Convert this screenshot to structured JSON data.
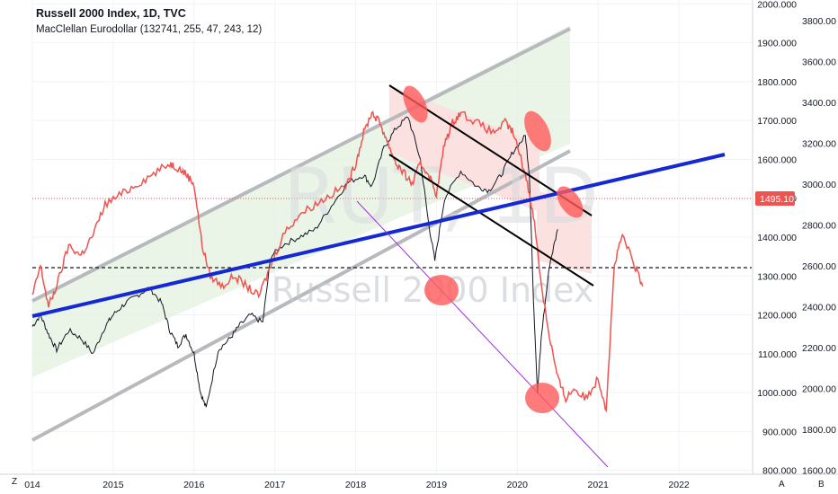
{
  "legend": {
    "title": "Russell 2000 Index, 1D, TVC",
    "indicator": "MacClellan Eurodollar (132741, 255, 47, 243, 12)"
  },
  "watermark": {
    "symbol": "RUT, 1D",
    "name": "Russell 2000 Index"
  },
  "axis_buttons": {
    "left": "Z",
    "auto": "A",
    "mode": "B"
  },
  "current_price_label": "1495.101",
  "colors": {
    "price": "#131722",
    "indicator": "#ef5350",
    "trend": "#1428d4",
    "channel": "#b7b9bd",
    "fan": "#9b30d9",
    "circle": "#ff5a5a",
    "green_fill": "#e3f2e0",
    "red_fill": "#fbe1e0"
  },
  "chart_data": {
    "type": "line",
    "title": "Russell 2000 Index, 1D, TVC",
    "x_ticks": [
      "014",
      "2015",
      "2016",
      "2017",
      "2018",
      "2019",
      "2020",
      "2021",
      "2022"
    ],
    "y_left_ticks": [
      "2000.000",
      "1900.000",
      "1800.000",
      "1700.000",
      "1600.000",
      "1500.000",
      "1400.000",
      "1300.000",
      "1200.000",
      "1100.000",
      "1000.000",
      "900.000",
      "800.000"
    ],
    "y_right_ticks": [
      "3800.00",
      "3600.00",
      "3400.00",
      "3200.00",
      "3000.00",
      "2800.00",
      "2600.00",
      "2400.00",
      "2200.00",
      "2000.00",
      "1800.00",
      "1600.00"
    ],
    "ylim_left": [
      790,
      2010
    ],
    "ylim_right": [
      1580,
      3900
    ],
    "xlim": [
      2014.0,
      2022.9
    ],
    "series": [
      {
        "name": "Russell 2000 Index",
        "axis": "left",
        "x": [
          2014.0,
          2014.1,
          2014.2,
          2014.3,
          2014.45,
          2014.6,
          2014.75,
          2014.9,
          2015.0,
          2015.15,
          2015.3,
          2015.45,
          2015.6,
          2015.7,
          2015.8,
          2015.9,
          2016.0,
          2016.08,
          2016.15,
          2016.3,
          2016.45,
          2016.55,
          2016.7,
          2016.85,
          2016.95,
          2017.1,
          2017.3,
          2017.5,
          2017.7,
          2017.9,
          2018.1,
          2018.2,
          2018.35,
          2018.5,
          2018.65,
          2018.8,
          2018.9,
          2018.98,
          2019.1,
          2019.3,
          2019.5,
          2019.65,
          2019.8,
          2019.95,
          2020.1,
          2020.15,
          2020.2,
          2020.25,
          2020.3,
          2020.4,
          2020.5
        ],
        "values": [
          1170,
          1200,
          1150,
          1110,
          1160,
          1140,
          1100,
          1170,
          1200,
          1230,
          1250,
          1270,
          1230,
          1160,
          1120,
          1150,
          1100,
          1000,
          960,
          1110,
          1140,
          1170,
          1200,
          1180,
          1350,
          1380,
          1400,
          1420,
          1480,
          1540,
          1560,
          1530,
          1630,
          1680,
          1710,
          1600,
          1440,
          1340,
          1500,
          1570,
          1530,
          1520,
          1560,
          1620,
          1660,
          1560,
          1240,
          1000,
          1150,
          1330,
          1420
        ]
      },
      {
        "name": "MacClellan Eurodollar",
        "axis": "right",
        "x": [
          2014.0,
          2014.1,
          2014.2,
          2014.3,
          2014.45,
          2014.6,
          2014.75,
          2014.9,
          2015.1,
          2015.3,
          2015.5,
          2015.7,
          2015.8,
          2015.9,
          2016.0,
          2016.1,
          2016.2,
          2016.35,
          2016.5,
          2016.65,
          2016.8,
          2016.95,
          2017.1,
          2017.3,
          2017.5,
          2017.7,
          2017.9,
          2018.0,
          2018.1,
          2018.2,
          2018.3,
          2018.4,
          2018.5,
          2018.6,
          2018.7,
          2018.8,
          2018.9,
          2019.0,
          2019.1,
          2019.2,
          2019.3,
          2019.5,
          2019.7,
          2019.85,
          2019.95,
          2020.1,
          2020.2,
          2020.3,
          2020.4,
          2020.5,
          2020.6,
          2020.7,
          2020.85,
          2021.0,
          2021.1,
          2021.2,
          2021.3,
          2021.45,
          2021.55
        ],
        "values": [
          2450,
          2600,
          2400,
          2500,
          2700,
          2650,
          2750,
          2900,
          2950,
          3000,
          3050,
          3100,
          3080,
          3050,
          3000,
          2700,
          2550,
          2500,
          2550,
          2500,
          2450,
          2600,
          2750,
          2850,
          2900,
          2950,
          3000,
          3100,
          3250,
          3350,
          3300,
          3200,
          3100,
          3050,
          3000,
          3100,
          3050,
          2950,
          3200,
          3300,
          3350,
          3300,
          3250,
          3300,
          3250,
          3050,
          2850,
          2500,
          2250,
          2050,
          1950,
          2000,
          1950,
          2050,
          1900,
          2600,
          2750,
          2600,
          2500
        ]
      }
    ],
    "annotations": [
      "ascending channel",
      "blue trend line",
      "descending channel",
      "purple fan line",
      "dashed horizontal level",
      "red ellipse highlights"
    ],
    "grid": true
  }
}
